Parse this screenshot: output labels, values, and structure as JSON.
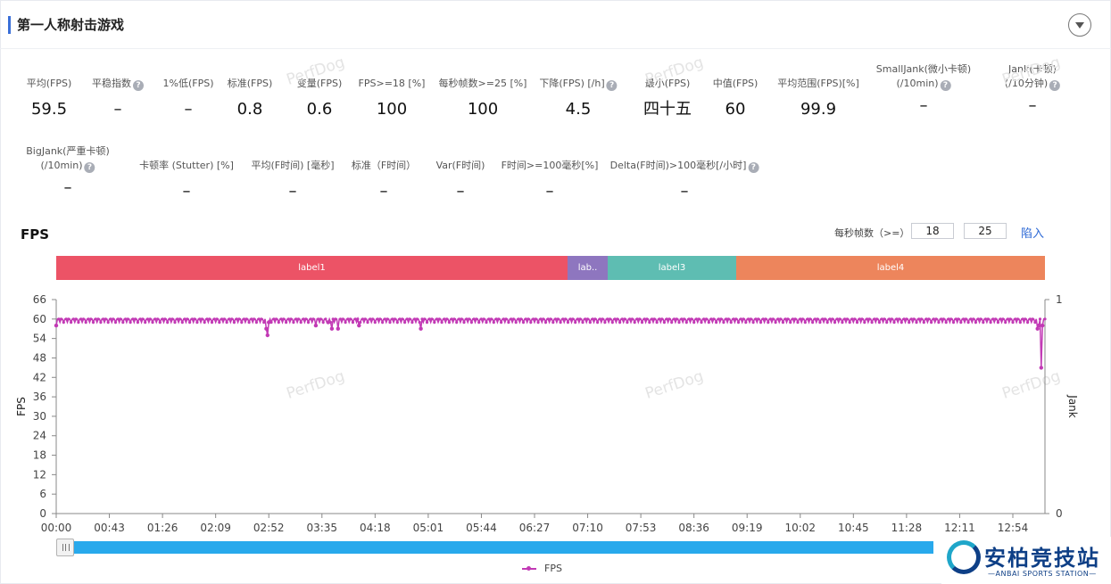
{
  "header": {
    "title": "第一人称射击游戏"
  },
  "metrics_row1": [
    {
      "label": "平均(FPS)",
      "value": "59.5",
      "help": false
    },
    {
      "label": "平稳指数",
      "value": "–",
      "help": true
    },
    {
      "label": "1%低(FPS)",
      "value": "–",
      "help": false
    },
    {
      "label": "标准(FPS)",
      "value": "0.8",
      "help": false
    },
    {
      "label": "变量(FPS)",
      "value": "0.6",
      "help": false
    },
    {
      "label": "FPS>=18 [%]",
      "value": "100",
      "help": false
    },
    {
      "label": "每秒帧数>=25 [%]",
      "value": "100",
      "help": false
    },
    {
      "label": "下降(FPS) [/h]",
      "value": "4.5",
      "help": true
    },
    {
      "label": "最小(FPS)",
      "value": "四十五",
      "help": false
    },
    {
      "label": "中值(FPS)",
      "value": "60",
      "help": false
    },
    {
      "label": "平均范围(FPS)[%]",
      "value": "99.9",
      "help": false
    },
    {
      "label": "SmallJank(微小卡顿)",
      "label2": "(/10min)",
      "value": "–",
      "help": true
    },
    {
      "label": "Jank(卡顿)",
      "label2": "(/10分钟)",
      "value": "–",
      "help": true
    }
  ],
  "metrics_row2": [
    {
      "label": "BigJank(严重卡顿)",
      "label2": "(/10min)",
      "value": "–",
      "help": true
    },
    {
      "label": "卡顿率 (Stutter) [%]",
      "value": "–",
      "help": false
    },
    {
      "label": "平均(F时间) [毫秒]",
      "value": "–",
      "help": false
    },
    {
      "label": "标准（F时间）",
      "value": "–",
      "help": false
    },
    {
      "label": "Var(F时间)",
      "value": "–",
      "help": false
    },
    {
      "label": "F时间>=100毫秒[%]",
      "value": "–",
      "help": false
    },
    {
      "label": "Delta(F时间)>100毫秒[/小时]",
      "value": "–",
      "help": true
    }
  ],
  "watermark": "PerfDog",
  "fps_section": {
    "title": "FPS",
    "threshold_label": "每秒帧数（>=）",
    "threshold1": "18",
    "threshold2": "25",
    "import_label": "陷入"
  },
  "labels": [
    {
      "name": "label1",
      "color": "#ec5366"
    },
    {
      "name": "lab..",
      "color": "#8e76bf"
    },
    {
      "name": "label3",
      "color": "#5ebdb2"
    },
    {
      "name": "label4",
      "color": "#ed855c"
    }
  ],
  "logo": {
    "main": "安柏竞技站",
    "sub": "—ANBAI SPORTS STATION—"
  },
  "chart_data": {
    "type": "line",
    "ylabel": "FPS",
    "y2label": "Jank",
    "ylim": [
      0,
      66
    ],
    "yticks": [
      0,
      6,
      12,
      18,
      24,
      30,
      36,
      42,
      48,
      54,
      60,
      66
    ],
    "y2ticks": [
      "0",
      "1"
    ],
    "xticks": [
      "00:00",
      "00:43",
      "01:26",
      "02:09",
      "02:52",
      "03:35",
      "04:18",
      "05:01",
      "05:44",
      "06:27",
      "07:10",
      "07:53",
      "08:36",
      "09:19",
      "10:02",
      "10:45",
      "11:28",
      "12:11",
      "12:54"
    ],
    "x_range_seconds": [
      0,
      800
    ],
    "legend": [
      "FPS"
    ],
    "legend_position": "bottom",
    "grid": false,
    "series": [
      {
        "name": "FPS",
        "color": "#c23ab5",
        "baseline": 60,
        "dips": [
          {
            "t": 0,
            "fps": 58
          },
          {
            "t": 170,
            "fps": 57
          },
          {
            "t": 171,
            "fps": 55
          },
          {
            "t": 172,
            "fps": 59
          },
          {
            "t": 210,
            "fps": 58
          },
          {
            "t": 220,
            "fps": 59
          },
          {
            "t": 223,
            "fps": 57
          },
          {
            "t": 228,
            "fps": 57
          },
          {
            "t": 245,
            "fps": 58
          },
          {
            "t": 295,
            "fps": 57
          },
          {
            "t": 794,
            "fps": 57
          },
          {
            "t": 795,
            "fps": 58
          },
          {
            "t": 797,
            "fps": 45
          },
          {
            "t": 798,
            "fps": 58
          }
        ]
      }
    ]
  }
}
